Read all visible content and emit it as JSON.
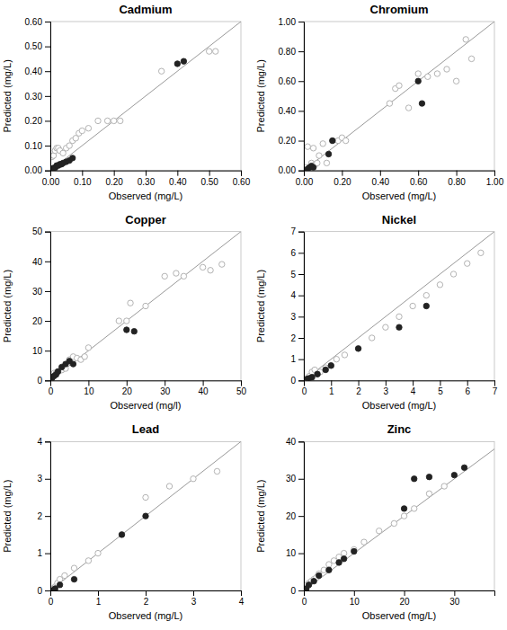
{
  "chart_data": [
    {
      "type": "scatter",
      "title": "Cadmium",
      "xlabel": "Observed (mg/L)",
      "ylabel": "Predicted (mg/L)",
      "xlim": [
        0,
        0.6
      ],
      "ylim": [
        0,
        0.6
      ],
      "xticks": [
        {
          "value": 0.0,
          "label": "0.00"
        },
        {
          "value": 0.1,
          "label": "0.10"
        },
        {
          "value": 0.2,
          "label": "0.20"
        },
        {
          "value": 0.3,
          "label": "0.30"
        },
        {
          "value": 0.4,
          "label": "0.40"
        },
        {
          "value": 0.5,
          "label": "0.50"
        },
        {
          "value": 0.6,
          "label": "0.60"
        }
      ],
      "yticks": [
        {
          "value": 0.0,
          "label": "0.00"
        },
        {
          "value": 0.1,
          "label": "0.10"
        },
        {
          "value": 0.2,
          "label": "0.20"
        },
        {
          "value": 0.3,
          "label": "0.30"
        },
        {
          "value": 0.4,
          "label": "0.40"
        },
        {
          "value": 0.5,
          "label": "0.50"
        },
        {
          "value": 0.6,
          "label": "0.60"
        }
      ],
      "grid": false,
      "series": [
        {
          "type": "line",
          "color": "#999999",
          "x": [
            0,
            0.6
          ],
          "values": [
            0,
            0.6
          ]
        },
        {
          "marker": "circle-open",
          "color": "#aaaaaa",
          "x": [
            0.005,
            0.01,
            0.015,
            0.02,
            0.025,
            0.03,
            0.04,
            0.05,
            0.06,
            0.07,
            0.08,
            0.09,
            0.1,
            0.12,
            0.15,
            0.18,
            0.2,
            0.22,
            0.35,
            0.5,
            0.52
          ],
          "values": [
            0.055,
            0.06,
            0.08,
            0.09,
            0.09,
            0.08,
            0.07,
            0.09,
            0.1,
            0.12,
            0.13,
            0.15,
            0.16,
            0.17,
            0.2,
            0.2,
            0.2,
            0.2,
            0.4,
            0.48,
            0.48
          ]
        },
        {
          "marker": "circle",
          "color": "#222222",
          "x": [
            0.003,
            0.005,
            0.01,
            0.015,
            0.02,
            0.025,
            0.03,
            0.035,
            0.04,
            0.05,
            0.06,
            0.07,
            0.4,
            0.42
          ],
          "values": [
            0.003,
            0.005,
            0.01,
            0.01,
            0.02,
            0.02,
            0.025,
            0.025,
            0.03,
            0.035,
            0.04,
            0.05,
            0.43,
            0.44
          ]
        }
      ]
    },
    {
      "type": "scatter",
      "title": "Chromium",
      "xlabel": "Observed (mg/L)",
      "ylabel": "Predicted (mg/L)",
      "xlim": [
        0,
        1.0
      ],
      "ylim": [
        0,
        1.0
      ],
      "xticks": [
        {
          "value": 0.0,
          "label": "0.00"
        },
        {
          "value": 0.2,
          "label": "0.20"
        },
        {
          "value": 0.4,
          "label": "0.40"
        },
        {
          "value": 0.6,
          "label": "0.60"
        },
        {
          "value": 0.8,
          "label": "0.80"
        },
        {
          "value": 1.0,
          "label": "1.00"
        }
      ],
      "yticks": [
        {
          "value": 0.0,
          "label": "0.00"
        },
        {
          "value": 0.2,
          "label": "0.20"
        },
        {
          "value": 0.4,
          "label": "0.40"
        },
        {
          "value": 0.6,
          "label": "0.60"
        },
        {
          "value": 0.8,
          "label": "0.80"
        },
        {
          "value": 1.0,
          "label": "1.00"
        }
      ],
      "grid": false,
      "series": [
        {
          "type": "line",
          "color": "#999999",
          "x": [
            0,
            1.0
          ],
          "values": [
            0,
            1.0
          ]
        },
        {
          "marker": "circle-open",
          "color": "#aaaaaa",
          "x": [
            0.01,
            0.02,
            0.03,
            0.04,
            0.05,
            0.06,
            0.07,
            0.08,
            0.1,
            0.12,
            0.15,
            0.18,
            0.2,
            0.22,
            0.45,
            0.48,
            0.5,
            0.55,
            0.6,
            0.65,
            0.7,
            0.75,
            0.8,
            0.85,
            0.88
          ],
          "values": [
            0.02,
            0.16,
            0.02,
            0.05,
            0.15,
            0.04,
            0.05,
            0.1,
            0.18,
            0.05,
            0.2,
            0.2,
            0.22,
            0.2,
            0.45,
            0.55,
            0.57,
            0.42,
            0.65,
            0.63,
            0.65,
            0.68,
            0.6,
            0.88,
            0.75
          ]
        },
        {
          "marker": "circle",
          "color": "#222222",
          "x": [
            0.01,
            0.02,
            0.03,
            0.04,
            0.05,
            0.13,
            0.15,
            0.6,
            0.62
          ],
          "values": [
            0.0,
            0.01,
            0.02,
            0.03,
            0.02,
            0.11,
            0.2,
            0.6,
            0.45
          ]
        }
      ]
    },
    {
      "type": "scatter",
      "title": "Copper",
      "xlabel": "Observed (mg/l)",
      "ylabel": "Predicted (mg/L)",
      "xlim": [
        0,
        50
      ],
      "ylim": [
        0,
        50
      ],
      "xticks": [
        0,
        10,
        20,
        30,
        40,
        50
      ],
      "yticks": [
        0,
        10,
        20,
        30,
        40,
        50
      ],
      "grid": false,
      "series": [
        {
          "type": "line",
          "color": "#999999",
          "x": [
            0,
            50
          ],
          "values": [
            0,
            50
          ]
        },
        {
          "marker": "circle-open",
          "color": "#aaaaaa",
          "x": [
            0.5,
            1.0,
            1.5,
            2.0,
            3.0,
            4.0,
            5.0,
            6.0,
            7.0,
            8.0,
            9.0,
            10.0,
            18.0,
            20.0,
            21.0,
            25.0,
            30.0,
            33.0,
            35.0,
            40.0,
            42.0,
            45.0
          ],
          "values": [
            2.0,
            2.5,
            2.5,
            3.0,
            3.5,
            4.0,
            7.0,
            8.0,
            7.5,
            7.0,
            8.0,
            11.0,
            20.0,
            20.0,
            26.0,
            25.0,
            35.0,
            36.0,
            35.0,
            38.0,
            37.0,
            39.0
          ]
        },
        {
          "marker": "circle",
          "color": "#222222",
          "x": [
            0.3,
            0.5,
            1.0,
            1.5,
            2.0,
            3.0,
            4.0,
            5.0,
            6.0,
            20.0,
            22.0
          ],
          "values": [
            0.5,
            1.0,
            1.5,
            2.0,
            3.0,
            4.5,
            5.5,
            6.5,
            5.5,
            17.0,
            16.5
          ]
        }
      ]
    },
    {
      "type": "scatter",
      "title": "Nickel",
      "xlabel": "Observed (mg/L)",
      "ylabel": "Predicted (mg/L)",
      "xlim": [
        0,
        7
      ],
      "ylim": [
        0,
        7
      ],
      "xticks": [
        0,
        1,
        2,
        3,
        4,
        5,
        6,
        7
      ],
      "yticks": [
        0,
        1,
        2,
        3,
        4,
        5,
        6,
        7
      ],
      "grid": false,
      "series": [
        {
          "type": "line",
          "color": "#999999",
          "x": [
            0,
            7
          ],
          "values": [
            0,
            7
          ]
        },
        {
          "marker": "circle-open",
          "color": "#aaaaaa",
          "x": [
            0.1,
            0.2,
            0.3,
            0.4,
            0.5,
            0.6,
            0.8,
            1.0,
            1.2,
            1.5,
            2.0,
            2.5,
            3.0,
            3.5,
            4.0,
            4.5,
            5.0,
            5.5,
            6.0,
            6.5
          ],
          "values": [
            0.1,
            0.2,
            0.4,
            0.5,
            0.3,
            0.4,
            0.6,
            0.7,
            1.0,
            1.2,
            1.5,
            2.0,
            2.5,
            3.0,
            3.5,
            4.0,
            4.5,
            5.0,
            5.5,
            6.0
          ]
        },
        {
          "marker": "circle",
          "color": "#222222",
          "x": [
            0.1,
            0.15,
            0.2,
            0.3,
            0.5,
            0.8,
            1.0,
            2.0,
            3.5,
            4.5
          ],
          "values": [
            0.05,
            0.08,
            0.1,
            0.15,
            0.3,
            0.5,
            0.7,
            1.5,
            2.5,
            3.5
          ]
        }
      ]
    },
    {
      "type": "scatter",
      "title": "Lead",
      "xlabel": "Observed (mg/L)",
      "ylabel": "Predicted (mg/L)",
      "xlim": [
        0,
        4
      ],
      "ylim": [
        0,
        4
      ],
      "xticks": [
        0,
        1,
        2,
        3,
        4
      ],
      "yticks": [
        0,
        1,
        2,
        3,
        4
      ],
      "grid": false,
      "series": [
        {
          "type": "line",
          "color": "#999999",
          "x": [
            0,
            4
          ],
          "values": [
            0,
            4
          ]
        },
        {
          "marker": "circle-open",
          "color": "#aaaaaa",
          "x": [
            0.05,
            0.08,
            0.1,
            0.15,
            0.2,
            0.3,
            0.5,
            0.8,
            1.0,
            1.5,
            2.0,
            2.5,
            3.0,
            3.5
          ],
          "values": [
            0.05,
            0.06,
            0.1,
            0.2,
            0.3,
            0.4,
            0.6,
            0.8,
            1.0,
            1.5,
            2.5,
            2.8,
            3.0,
            3.2
          ]
        },
        {
          "marker": "circle",
          "color": "#222222",
          "x": [
            0.05,
            0.1,
            0.2,
            0.5,
            1.5,
            2.0
          ],
          "values": [
            0.0,
            0.05,
            0.15,
            0.3,
            1.5,
            2.0
          ]
        }
      ]
    },
    {
      "type": "scatter",
      "title": "Zinc",
      "xlabel": "Observed (mg/L)",
      "ylabel": "Predicted (mg/L)",
      "xlim": [
        0,
        38
      ],
      "ylim": [
        0,
        40
      ],
      "xticks": [
        0,
        10,
        20,
        30
      ],
      "yticks": [
        0,
        10,
        20,
        30,
        40
      ],
      "grid": false,
      "series": [
        {
          "type": "line",
          "color": "#999999",
          "x": [
            0,
            38
          ],
          "values": [
            0,
            38
          ]
        },
        {
          "marker": "circle-open",
          "color": "#aaaaaa",
          "x": [
            0.5,
            1.0,
            1.5,
            2.0,
            2.5,
            3.0,
            4.0,
            5.0,
            6.0,
            7.0,
            8.0,
            10.0,
            12.0,
            15.0,
            18.0,
            20.0,
            22.0,
            25.0,
            28.0
          ],
          "values": [
            1.5,
            2.0,
            2.5,
            3.0,
            3.5,
            4.5,
            5.5,
            7.0,
            8.0,
            9.0,
            10.0,
            11.0,
            13.0,
            16.0,
            18.0,
            20.0,
            22.0,
            26.0,
            28.0
          ]
        },
        {
          "marker": "circle",
          "color": "#222222",
          "x": [
            0.5,
            1.0,
            2.0,
            3.0,
            5.0,
            7.0,
            8.0,
            10.0,
            20.0,
            22.0,
            25.0,
            30.0,
            32.0
          ],
          "values": [
            0.5,
            1.5,
            2.5,
            4.0,
            5.5,
            7.5,
            8.5,
            10.5,
            22.0,
            30.0,
            30.5,
            31.0,
            33.0
          ]
        }
      ]
    }
  ]
}
